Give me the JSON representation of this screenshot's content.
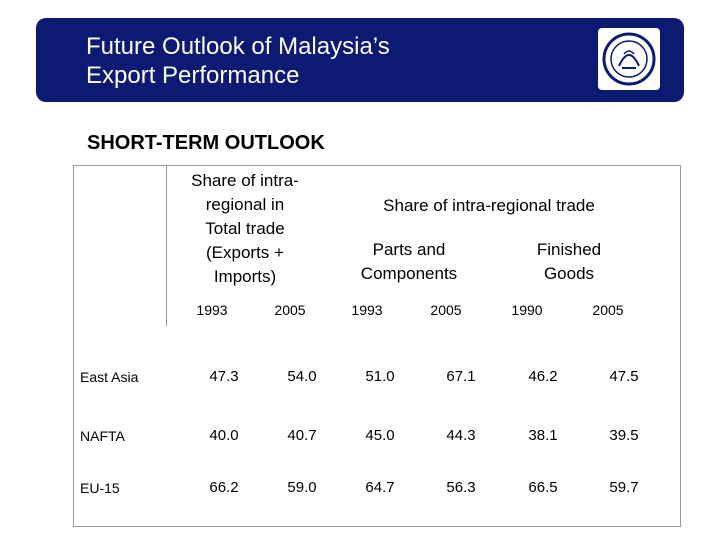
{
  "banner": {
    "title_line1": "Future Outlook of Malaysia’s",
    "title_line2": "Export Performance"
  },
  "section_title": "SHORT-TERM OUTLOOK",
  "table": {
    "header_total": [
      "Share of intra-",
      "regional in",
      "Total trade",
      "(Exports +",
      "Imports)"
    ],
    "header_intra": "Share of intra-regional trade",
    "header_parts": [
      "Parts and",
      "Components"
    ],
    "header_finished": [
      "Finished",
      "Goods"
    ],
    "years": [
      "1993",
      "2005",
      "1993",
      "2005",
      "1990",
      "2005"
    ],
    "rows": [
      {
        "region": "East Asia",
        "values": [
          "47.3",
          "54.0",
          "51.0",
          "67.1",
          "46.2",
          "47.5"
        ]
      },
      {
        "region": "NAFTA",
        "values": [
          "40.0",
          "40.7",
          "45.0",
          "44.3",
          "38.1",
          "39.5"
        ]
      },
      {
        "region": "EU-15",
        "values": [
          "66.2",
          "59.0",
          "64.7",
          "56.3",
          "66.5",
          "59.7"
        ]
      }
    ]
  },
  "colors": {
    "banner": "#0d1a73",
    "banner_text": "#ffffff"
  },
  "icons": {
    "logo": "emblem-logo"
  }
}
